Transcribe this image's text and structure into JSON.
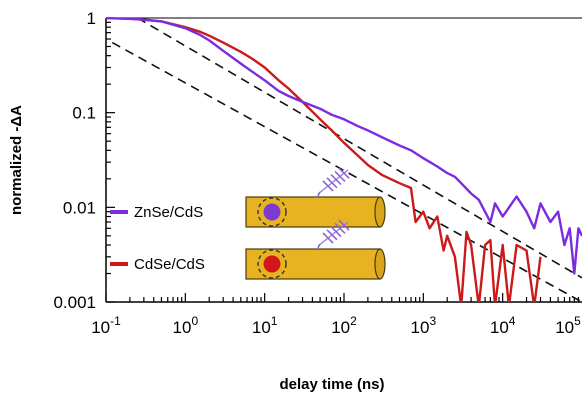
{
  "chart_data": {
    "type": "line",
    "title": "",
    "xlabel": "delay time (ns)",
    "ylabel": "normalized  -ΔA",
    "xscale": "log",
    "yscale": "log",
    "xlim": [
      0.1,
      100000
    ],
    "ylim": [
      0.001,
      1
    ],
    "grid": false,
    "legend_position": "bottom-left",
    "x_tick_labels": [
      {
        "base": "10",
        "exp": "-1",
        "value": 0.1
      },
      {
        "base": "10",
        "exp": "0",
        "value": 1
      },
      {
        "base": "10",
        "exp": "1",
        "value": 10
      },
      {
        "base": "10",
        "exp": "2",
        "value": 100
      },
      {
        "base": "10",
        "exp": "3",
        "value": 1000
      },
      {
        "base": "10",
        "exp": "4",
        "value": 10000
      },
      {
        "base": "10",
        "exp": "5",
        "value": 100000
      }
    ],
    "y_tick_labels": [
      {
        "label": "1",
        "value": 1
      },
      {
        "label": "0.1",
        "value": 0.1
      },
      {
        "label": "0.01",
        "value": 0.01
      },
      {
        "label": "0.001",
        "value": 0.001
      }
    ],
    "series": [
      {
        "name": "ZnSe/CdS",
        "color": "#7b2be0",
        "marker": "purple-core-nanorod-icon",
        "x": [
          0.1,
          0.2,
          0.3,
          0.5,
          0.7,
          1,
          1.5,
          2,
          3,
          5,
          7,
          10,
          15,
          20,
          30,
          50,
          70,
          100,
          150,
          200,
          300,
          500,
          700,
          1000,
          1500,
          2000,
          2500,
          3000,
          4000,
          5000,
          7000,
          8000,
          10000,
          15000,
          20000,
          25000,
          30000,
          40000,
          50000,
          60000,
          70000,
          80000,
          90000,
          100000
        ],
        "y": [
          1.0,
          0.98,
          0.96,
          0.92,
          0.85,
          0.78,
          0.67,
          0.58,
          0.45,
          0.33,
          0.27,
          0.22,
          0.17,
          0.15,
          0.13,
          0.11,
          0.095,
          0.085,
          0.072,
          0.065,
          0.055,
          0.045,
          0.04,
          0.033,
          0.027,
          0.023,
          0.021,
          0.018,
          0.014,
          0.012,
          0.007,
          0.011,
          0.008,
          0.013,
          0.009,
          0.006,
          0.011,
          0.007,
          0.009,
          0.004,
          0.006,
          0.002,
          0.006,
          0.005
        ]
      },
      {
        "name": "CdSe/CdS",
        "color": "#cc1a1a",
        "marker": "red-core-nanorod-icon",
        "x": [
          0.1,
          0.2,
          0.3,
          0.5,
          0.7,
          1,
          1.5,
          2,
          3,
          5,
          7,
          10,
          15,
          20,
          30,
          50,
          70,
          100,
          150,
          200,
          300,
          500,
          700,
          800,
          1000,
          1200,
          1500,
          1800,
          2000,
          2500,
          3000,
          3500,
          4000,
          5000,
          6000,
          7000,
          8000,
          10000,
          12000,
          15000,
          20000,
          25000,
          30000
        ],
        "y": [
          1.0,
          0.98,
          0.96,
          0.92,
          0.86,
          0.8,
          0.72,
          0.65,
          0.55,
          0.44,
          0.37,
          0.3,
          0.22,
          0.18,
          0.13,
          0.085,
          0.065,
          0.048,
          0.035,
          0.028,
          0.022,
          0.018,
          0.016,
          0.007,
          0.009,
          0.006,
          0.008,
          0.0035,
          0.005,
          0.003,
          0.0009,
          0.0055,
          0.004,
          0.0009,
          0.004,
          0.0045,
          0.0009,
          0.004,
          0.0009,
          0.004,
          0.0035,
          0.0009,
          0.003
        ]
      }
    ],
    "guide_lines": [
      {
        "name": "power-law-guide-upper",
        "style": "dashed",
        "x": [
          0.25,
          100000
        ],
        "y": [
          1,
          0.0018
        ]
      },
      {
        "name": "power-law-guide-lower",
        "style": "dashed",
        "x": [
          0.12,
          100000
        ],
        "y": [
          0.55,
          0.001
        ]
      }
    ]
  }
}
